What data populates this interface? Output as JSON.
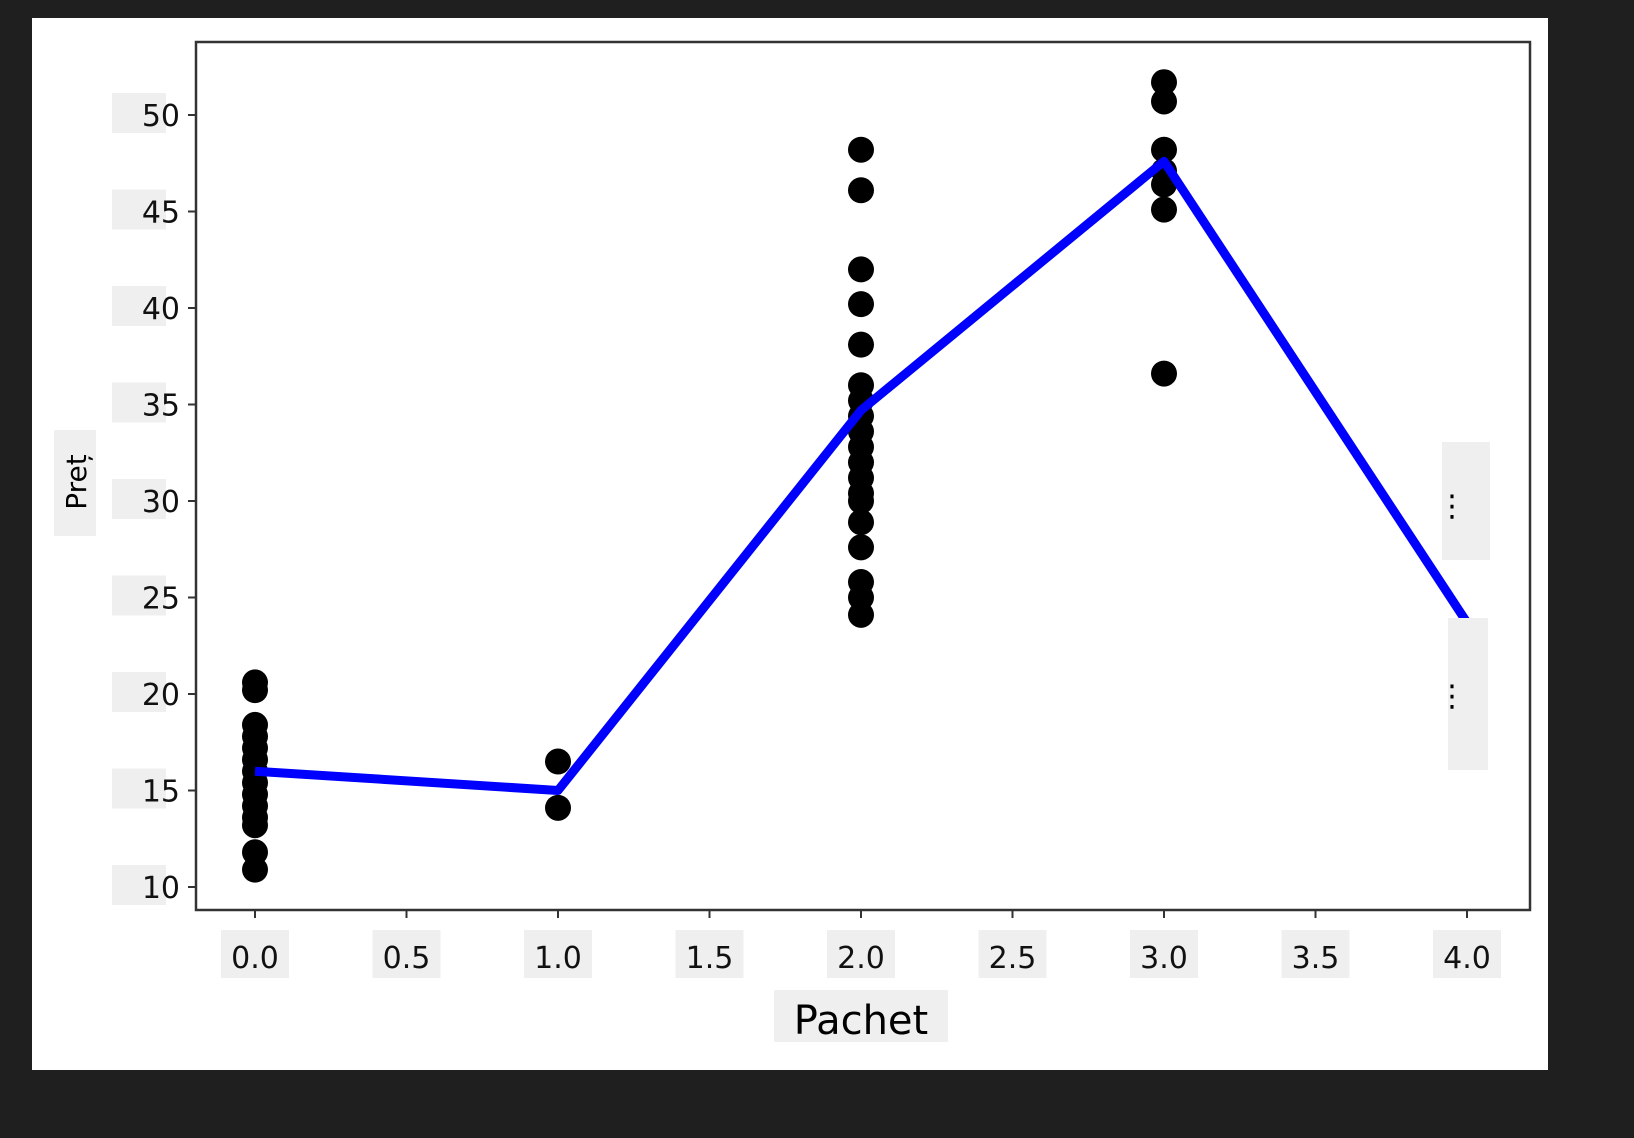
{
  "chart_data": {
    "type": "scatter",
    "title": "",
    "xlabel": "Pachet",
    "ylabel": "Preț",
    "xlim": [
      -0.2,
      4.2
    ],
    "ylim": [
      9,
      53.5
    ],
    "xticks": [
      "0.0",
      "0.5",
      "1.0",
      "1.5",
      "2.0",
      "2.5",
      "3.0",
      "3.5",
      "4.0"
    ],
    "yticks": [
      "10",
      "15",
      "20",
      "25",
      "30",
      "35",
      "40",
      "45",
      "50"
    ],
    "grid": false,
    "scatter_series": [
      {
        "x": 0,
        "y": [
          20.6,
          20.2,
          18.4,
          17.8,
          17.2,
          16.6,
          16.0,
          15.4,
          14.8,
          14.2,
          13.6,
          13.2,
          11.8,
          10.9
        ]
      },
      {
        "x": 1,
        "y": [
          16.5,
          14.1
        ]
      },
      {
        "x": 2,
        "y": [
          48.2,
          46.1,
          42.0,
          40.2,
          38.1,
          36.0,
          35.2,
          34.4,
          33.6,
          32.8,
          32.0,
          31.2,
          30.4,
          30.0,
          28.9,
          27.6,
          25.8,
          25.0,
          24.1
        ]
      },
      {
        "x": 3,
        "y": [
          51.7,
          50.7,
          48.2,
          47.1,
          46.4,
          45.1,
          36.6
        ]
      }
    ],
    "line_series": {
      "x": [
        0,
        1,
        2,
        3,
        4
      ],
      "y": [
        16.0,
        15.0,
        34.7,
        47.6,
        23.7
      ]
    },
    "colors": {
      "points": "#000000",
      "line": "#0000ff"
    },
    "annotations": [
      "⋮",
      "⋮"
    ]
  }
}
